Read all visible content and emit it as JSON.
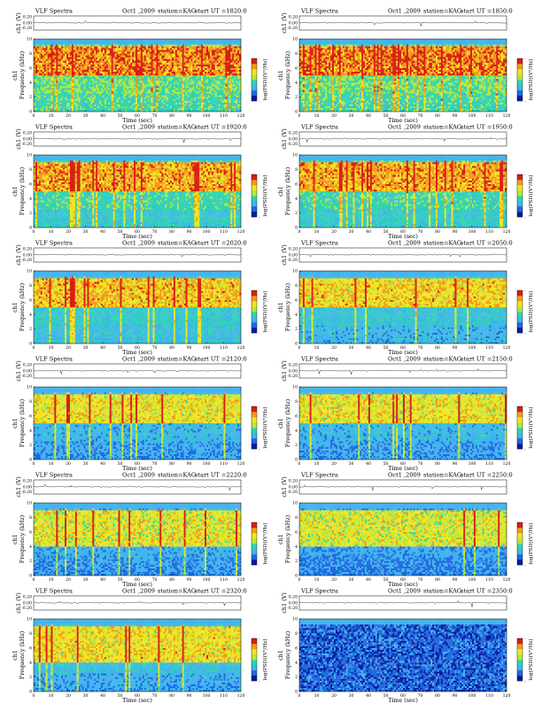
{
  "figure": {
    "type": "heatmap",
    "header": {
      "title": "VLF Spectra",
      "date": "Oct1 ,2009",
      "station": "station=KAG",
      "start_prefix": "start  UT =",
      "waveform_ylabel": "ch1 (V)",
      "spectrogram_ylabel": "Frequency  (kHz)",
      "channel_label": "ch1",
      "colorbar_label": "log(PSD)(V²/Hz)",
      "xlabel": "Time (sec)"
    },
    "colormap": [
      "#0a1aa0",
      "#1f68e0",
      "#3fb3ef",
      "#2fd5b0",
      "#b8e63c",
      "#f3e61f",
      "#f49a1a",
      "#d91d12"
    ],
    "colorbar_ticks": [
      "-",
      "-"
    ],
    "waveform_ticks": [
      "0.20",
      "0.00",
      "-0.20"
    ],
    "xticks": [
      "0",
      "10",
      "20",
      "30",
      "40",
      "50",
      "60",
      "70",
      "80",
      "90",
      "100",
      "110",
      "120"
    ],
    "yticks": [
      "0",
      "2",
      "4",
      "6",
      "8",
      "10"
    ],
    "xlim": [
      0,
      120
    ],
    "ylim_khz": [
      0,
      10
    ]
  },
  "chart_data": [
    {
      "type": "heatmap",
      "start_ut": "1820:0",
      "activity": "high",
      "mean_level": 0.55,
      "band_khz": [
        5,
        9
      ],
      "seed": 11
    },
    {
      "type": "heatmap",
      "start_ut": "1850:0",
      "activity": "high",
      "mean_level": 0.55,
      "band_khz": [
        5,
        9
      ],
      "seed": 23
    },
    {
      "type": "heatmap",
      "start_ut": "1920:0",
      "activity": "high",
      "mean_level": 0.5,
      "band_khz": [
        5,
        9
      ],
      "seed": 37
    },
    {
      "type": "heatmap",
      "start_ut": "1950:0",
      "activity": "high",
      "mean_level": 0.5,
      "band_khz": [
        5,
        9
      ],
      "seed": 41
    },
    {
      "type": "heatmap",
      "start_ut": "2020:0",
      "activity": "moderate",
      "mean_level": 0.45,
      "band_khz": [
        5,
        9
      ],
      "seed": 53
    },
    {
      "type": "heatmap",
      "start_ut": "2050:0",
      "activity": "moderate",
      "mean_level": 0.42,
      "band_khz": [
        5,
        9
      ],
      "seed": 67
    },
    {
      "type": "heatmap",
      "start_ut": "2120:0",
      "activity": "moderate",
      "mean_level": 0.38,
      "band_khz": [
        5,
        9
      ],
      "seed": 71
    },
    {
      "type": "heatmap",
      "start_ut": "2150:0",
      "activity": "moderate",
      "mean_level": 0.38,
      "band_khz": [
        5,
        9
      ],
      "seed": 83
    },
    {
      "type": "heatmap",
      "start_ut": "2220:0",
      "activity": "moderate",
      "mean_level": 0.36,
      "band_khz": [
        4,
        9
      ],
      "seed": 97
    },
    {
      "type": "heatmap",
      "start_ut": "2250:0",
      "activity": "moderate",
      "mean_level": 0.34,
      "band_khz": [
        4,
        9
      ],
      "seed": 101
    },
    {
      "type": "heatmap",
      "start_ut": "2320:0",
      "activity": "moderate",
      "mean_level": 0.4,
      "band_khz": [
        4,
        9
      ],
      "seed": 113
    },
    {
      "type": "heatmap",
      "start_ut": "2350:0",
      "activity": "low",
      "mean_level": 0.2,
      "band_khz": [
        0,
        10
      ],
      "seed": 127
    }
  ]
}
